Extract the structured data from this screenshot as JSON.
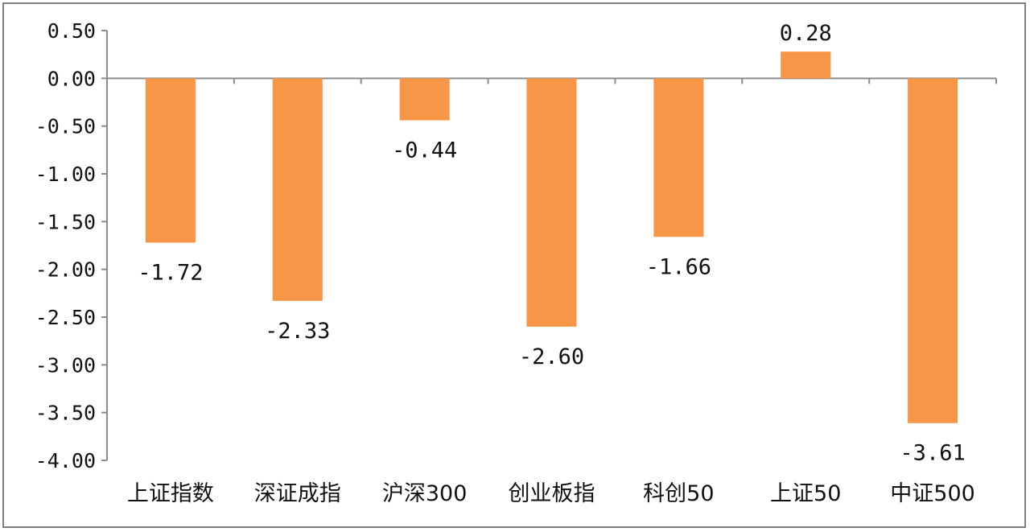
{
  "chart_data": {
    "type": "bar",
    "title": "",
    "xlabel": "",
    "ylabel": "",
    "categories": [
      "上证指数",
      "深证成指",
      "沪深300",
      "创业板指",
      "科创50",
      "上证50",
      "中证500"
    ],
    "values": [
      -1.72,
      -2.33,
      -0.44,
      -2.6,
      -1.66,
      0.28,
      -3.61
    ],
    "value_labels": [
      "-1.72",
      "-2.33",
      "-0.44",
      "-2.60",
      "-1.66",
      "0.28",
      "-3.61"
    ],
    "ylim": [
      -4.0,
      0.5
    ],
    "yticks": [
      0.5,
      0.0,
      -0.5,
      -1.0,
      -1.5,
      -2.0,
      -2.5,
      -3.0,
      -3.5,
      -4.0
    ],
    "ytick_labels": [
      "0.50",
      "0.00",
      "-0.50",
      "-1.00",
      "-1.50",
      "-2.00",
      "-2.50",
      "-3.00",
      "-3.50",
      "-4.00"
    ],
    "grid": false,
    "legend": "none",
    "bar_color": "#F79646",
    "axis_color": "#8c8c8c"
  }
}
